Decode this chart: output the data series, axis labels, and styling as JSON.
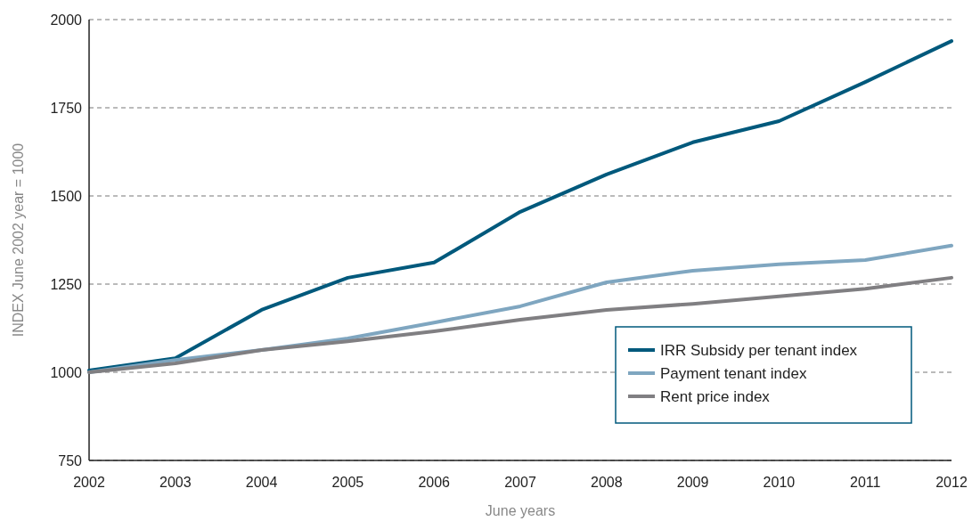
{
  "chart_data": {
    "type": "line",
    "xlabel": "June years",
    "ylabel": "INDEX June 2002 year = 1000",
    "x": [
      2002,
      2003,
      2004,
      2005,
      2006,
      2007,
      2008,
      2009,
      2010,
      2011,
      2012
    ],
    "xlim": [
      2002,
      2012
    ],
    "xticks": [
      2002,
      2003,
      2004,
      2005,
      2006,
      2007,
      2008,
      2009,
      2010,
      2011,
      2012
    ],
    "ylim": [
      750,
      2000
    ],
    "yticks": [
      750,
      1000,
      1250,
      1500,
      1750,
      2000
    ],
    "grid": "y",
    "legend": "bottom right",
    "marker": "none",
    "line_style": "solid",
    "series": [
      {
        "name": "IRR Subsidy per tenant index",
        "color": "#00597c",
        "values": [
          1005,
          1040,
          1177,
          1268,
          1311,
          1455,
          1561,
          1652,
          1712,
          1823,
          1939
        ]
      },
      {
        "name": "Payment tenant index",
        "color": "#7fa6c0",
        "values": [
          1000,
          1035,
          1063,
          1096,
          1141,
          1187,
          1255,
          1288,
          1306,
          1318,
          1359
        ]
      },
      {
        "name": "Rent price index",
        "color": "#807f82",
        "values": [
          1000,
          1025,
          1063,
          1088,
          1116,
          1149,
          1177,
          1194,
          1215,
          1237,
          1268
        ]
      }
    ]
  }
}
